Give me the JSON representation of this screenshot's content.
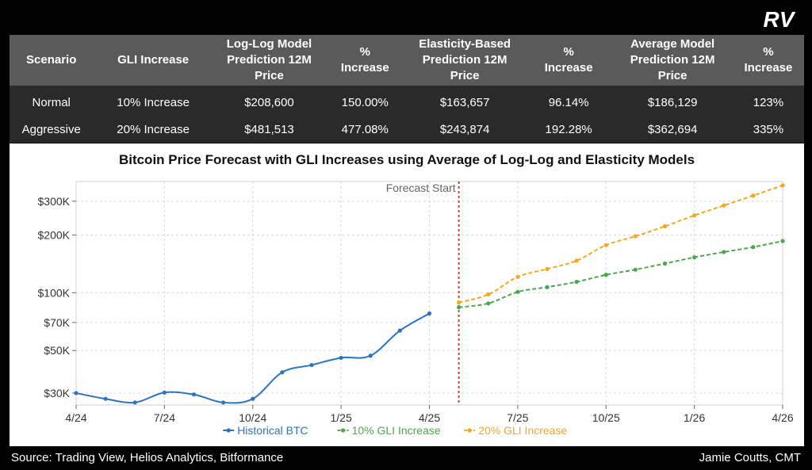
{
  "brand": {
    "logo_text": "RV"
  },
  "table": {
    "headers": [
      "Scenario",
      "GLI Increase",
      "Log-Log Model\nPrediction 12M\nPrice",
      "%\nIncrease",
      "Elasticity-Based\nPrediction 12M\nPrice",
      "%\nIncrease",
      "Average Model\nPrediction 12M\nPrice",
      "%\nIncrease"
    ],
    "rows": [
      [
        "Normal",
        "10% Increase",
        "$208,600",
        "150.00%",
        "$163,657",
        "96.14%",
        "$186,129",
        "123%"
      ],
      [
        "Aggressive",
        "20% Increase",
        "$481,513",
        "477.08%",
        "$243,874",
        "192.28%",
        "$362,694",
        "335%"
      ]
    ]
  },
  "chart_data": {
    "type": "line",
    "title": "Bitcoin Price Forecast with GLI Increases using Average of Log-Log and Elasticity Models",
    "y_scale": "log",
    "ylim": [
      26000,
      380000
    ],
    "xlim": [
      0,
      24
    ],
    "x_tick_labels": [
      "4/24",
      "7/24",
      "10/24",
      "1/25",
      "4/25",
      "7/25",
      "10/25",
      "1/26",
      "4/26"
    ],
    "x_tick_values": [
      0,
      3,
      6,
      9,
      12,
      15,
      18,
      21,
      24
    ],
    "y_ticks": [
      {
        "value": 30000,
        "label": "$30K"
      },
      {
        "value": 50000,
        "label": "$50K"
      },
      {
        "value": 70000,
        "label": "$70K"
      },
      {
        "value": 100000,
        "label": "$100K"
      },
      {
        "value": 200000,
        "label": "$200K"
      },
      {
        "value": 300000,
        "label": "$300K"
      }
    ],
    "annotation": {
      "label": "Forecast Start",
      "x": 13
    },
    "series": [
      {
        "name": "Historical BTC",
        "color": "#2a74c0",
        "dashed": false,
        "x": [
          0,
          1,
          2,
          3,
          4,
          5,
          6,
          7,
          8,
          9,
          10,
          11,
          12
        ],
        "values": [
          30000,
          28000,
          26800,
          30200,
          29500,
          26800,
          28000,
          38500,
          42000,
          45800,
          47000,
          63500,
          78000
        ]
      },
      {
        "name": "10% GLI Increase",
        "color": "#4aa84a",
        "dashed": true,
        "x": [
          13,
          14,
          15,
          16,
          17,
          18,
          19,
          20,
          21,
          22,
          23,
          24
        ],
        "values": [
          84000,
          88000,
          101000,
          107000,
          114000,
          124000,
          132000,
          142000,
          153000,
          163000,
          173000,
          186000
        ]
      },
      {
        "name": "20% GLI Increase",
        "color": "#f5a623",
        "dashed": true,
        "x": [
          13,
          14,
          15,
          16,
          17,
          18,
          19,
          20,
          21,
          22,
          23,
          24
        ],
        "values": [
          89000,
          98000,
          121000,
          133000,
          147000,
          177000,
          197000,
          222000,
          253000,
          285000,
          321000,
          362694
        ]
      }
    ]
  },
  "footer": {
    "source": "Source: Trading View, Helios Analytics, Bitformance",
    "author": "Jamie Coutts, CMT"
  }
}
